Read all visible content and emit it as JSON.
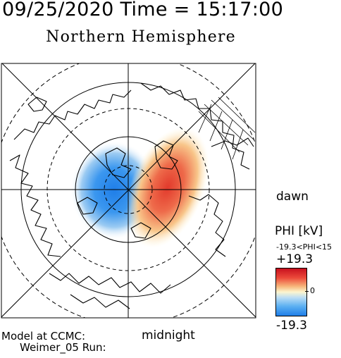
{
  "header": {
    "datetime_line": "09/25/2020 Time = 15:17:00"
  },
  "title": "Northern Hemisphere",
  "labels": {
    "dawn": "dawn",
    "midnight": "midnight"
  },
  "colorbar": {
    "title": "PHI [kV]",
    "range_text": "-19.3<PHI<15",
    "max_label": "+19.3",
    "zero_label": "0",
    "min_label": "-19.3",
    "colors": {
      "positive": "#d7191c",
      "zero": "#fcf5cf",
      "negative": "#1f7ee8"
    }
  },
  "footer": {
    "model_label": "Model at CCMC:",
    "run_label": "Weimer_05 Run:"
  },
  "map": {
    "projection": "north-polar",
    "min_potential_kv": -19.3,
    "max_potential_kv": 15,
    "grid_lines": "dashed-latitude-rings"
  }
}
